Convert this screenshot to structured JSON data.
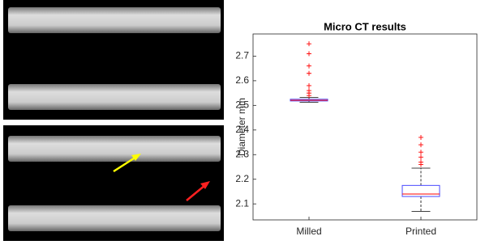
{
  "chart_data": {
    "type": "box",
    "title": "Micro CT results",
    "y_label": "Diameter mm",
    "categories": [
      "Milled",
      "Printed"
    ],
    "boxes": [
      {
        "min": 2.513,
        "q1": 2.518,
        "median": 2.521,
        "q3": 2.525,
        "max": 2.532,
        "outliers": [
          2.54,
          2.55,
          2.56,
          2.58,
          2.63,
          2.66,
          2.71,
          2.75
        ]
      },
      {
        "min": 2.07,
        "q1": 2.13,
        "median": 2.14,
        "q3": 2.175,
        "max": 2.245,
        "outliers": [
          2.26,
          2.27,
          2.29,
          2.31,
          2.34,
          2.37
        ]
      }
    ],
    "box_color": "#4a4aff",
    "median_color": "#ff0000",
    "outlier_color": "#ff0000",
    "whisker_color": "#000000",
    "ylim": [
      2.035,
      2.79
    ],
    "yticks": [
      2.1,
      2.2,
      2.3,
      2.4,
      2.5,
      2.6,
      2.7
    ]
  }
}
